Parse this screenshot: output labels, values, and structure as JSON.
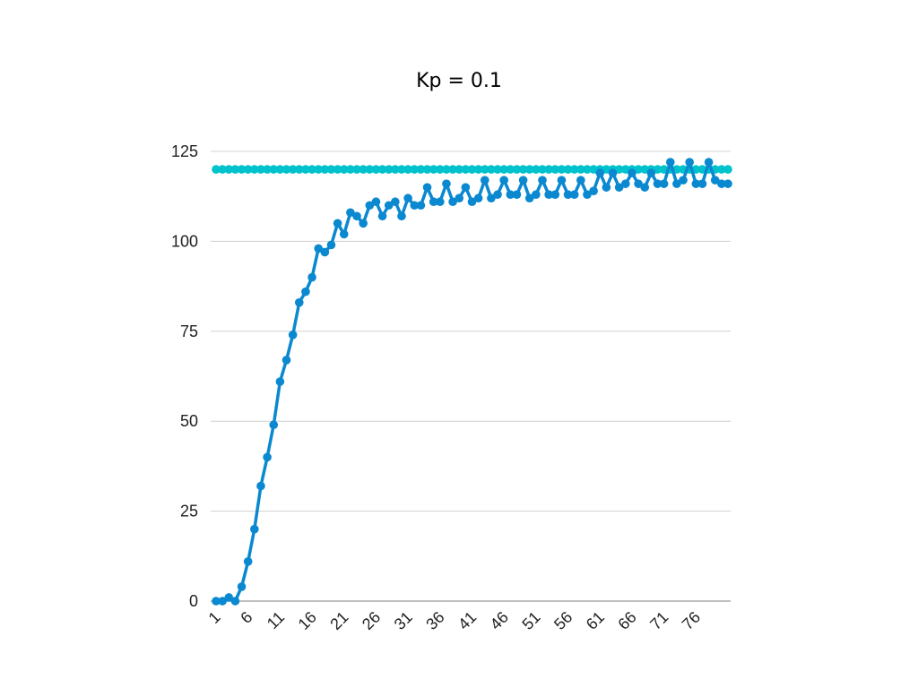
{
  "chart_data": {
    "type": "line",
    "title": "Kp = 0.1",
    "xlabel": "",
    "ylabel": "",
    "x": [
      1,
      2,
      3,
      4,
      5,
      6,
      7,
      8,
      9,
      10,
      11,
      12,
      13,
      14,
      15,
      16,
      17,
      18,
      19,
      20,
      21,
      22,
      23,
      24,
      25,
      26,
      27,
      28,
      29,
      30,
      31,
      32,
      33,
      34,
      35,
      36,
      37,
      38,
      39,
      40,
      41,
      42,
      43,
      44,
      45,
      46,
      47,
      48,
      49,
      50,
      51,
      52,
      53,
      54,
      55,
      56,
      57,
      58,
      59,
      60,
      61,
      62,
      63,
      64,
      65,
      66,
      67,
      68,
      69,
      70,
      71,
      72,
      73,
      74,
      75,
      76,
      77,
      78,
      79,
      80,
      81
    ],
    "x_tick_labels": [
      "1",
      "6",
      "11",
      "16",
      "21",
      "26",
      "31",
      "36",
      "41",
      "46",
      "51",
      "56",
      "61",
      "66",
      "71",
      "76"
    ],
    "y_ticks": [
      0,
      25,
      50,
      75,
      100,
      125
    ],
    "ylim": [
      0,
      125
    ],
    "grid": true,
    "legend": "none",
    "series": [
      {
        "color": "#00c2cc",
        "values": [
          120,
          120,
          120,
          120,
          120,
          120,
          120,
          120,
          120,
          120,
          120,
          120,
          120,
          120,
          120,
          120,
          120,
          120,
          120,
          120,
          120,
          120,
          120,
          120,
          120,
          120,
          120,
          120,
          120,
          120,
          120,
          120,
          120,
          120,
          120,
          120,
          120,
          120,
          120,
          120,
          120,
          120,
          120,
          120,
          120,
          120,
          120,
          120,
          120,
          120,
          120,
          120,
          120,
          120,
          120,
          120,
          120,
          120,
          120,
          120,
          120,
          120,
          120,
          120,
          120,
          120,
          120,
          120,
          120,
          120,
          120,
          120,
          120,
          120,
          120,
          120,
          120,
          120,
          120,
          120,
          120
        ]
      },
      {
        "color": "#0a88d0",
        "values": [
          0,
          0,
          1,
          0,
          4,
          11,
          20,
          32,
          40,
          49,
          61,
          67,
          74,
          83,
          86,
          90,
          98,
          97,
          99,
          105,
          102,
          108,
          107,
          105,
          110,
          111,
          107,
          110,
          111,
          107,
          112,
          110,
          110,
          115,
          111,
          111,
          116,
          111,
          112,
          115,
          111,
          112,
          117,
          112,
          113,
          117,
          113,
          113,
          117,
          112,
          113,
          117,
          113,
          113,
          117,
          113,
          113,
          117,
          113,
          114,
          119,
          115,
          119,
          115,
          116,
          119,
          116,
          115,
          119,
          116,
          116,
          122,
          116,
          117,
          122,
          116,
          116,
          122,
          117,
          116,
          116
        ]
      }
    ]
  }
}
